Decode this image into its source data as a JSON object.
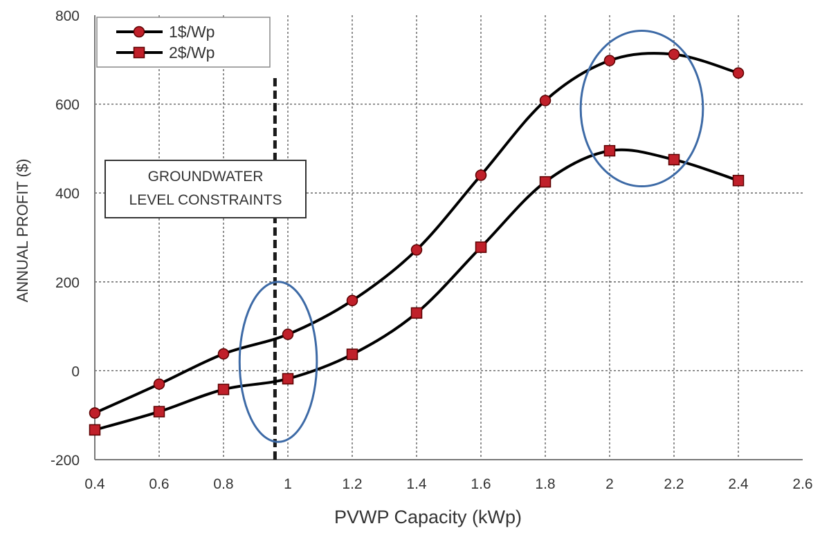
{
  "chart_data": {
    "type": "line",
    "xlabel": "PVWP Capacity (kWp)",
    "ylabel": "ANNUAL PROFIT ($)",
    "xlim": [
      0.4,
      2.6
    ],
    "ylim": [
      -200,
      800
    ],
    "x_ticks": [
      "0.4",
      "0.6",
      "0.8",
      "1",
      "1.2",
      "1.4",
      "1.6",
      "1.8",
      "2",
      "2.2",
      "2.4",
      "2.6"
    ],
    "y_ticks": [
      "-200",
      "0",
      "200",
      "400",
      "600",
      "800"
    ],
    "grid": true,
    "legend_position": "top-left",
    "series": [
      {
        "name": "1$/Wp",
        "marker": "circle",
        "color": "#000000",
        "marker_color": "#c0202a",
        "x": [
          0.4,
          0.6,
          0.8,
          1.0,
          1.2,
          1.4,
          1.6,
          1.8,
          2.0,
          2.2,
          2.4
        ],
        "values": [
          -95,
          -30,
          38,
          82,
          158,
          272,
          440,
          608,
          698,
          712,
          670
        ]
      },
      {
        "name": "2$/Wp",
        "marker": "square",
        "color": "#000000",
        "marker_color": "#c0202a",
        "x": [
          0.4,
          0.6,
          0.8,
          1.0,
          1.2,
          1.4,
          1.6,
          1.8,
          2.0,
          2.2,
          2.4
        ],
        "values": [
          -133,
          -92,
          -42,
          -18,
          37,
          130,
          278,
          425,
          495,
          475,
          428
        ]
      }
    ],
    "annotations": [
      {
        "text_lines": [
          "GROUNDWATER",
          "LEVEL CONSTRAINTS"
        ]
      }
    ],
    "constraint_line_x": 0.96,
    "highlight_ellipses": [
      {
        "center": [
          0.97,
          20
        ],
        "radius_x": 0.12,
        "radius_y": 180
      },
      {
        "center": [
          2.1,
          590
        ],
        "radius_x": 0.19,
        "radius_y": 175
      }
    ]
  }
}
